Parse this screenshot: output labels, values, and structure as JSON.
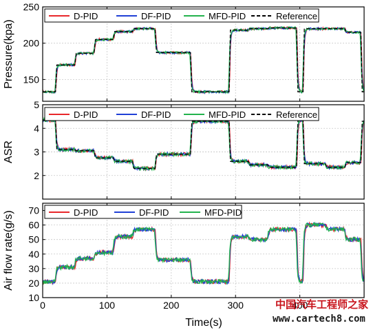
{
  "chart_data": [
    {
      "type": "line",
      "ylabel": "Pressure(kpa)",
      "ylim": [
        120,
        250
      ],
      "yticks": [
        150,
        200,
        250
      ],
      "xlim": [
        0,
        500
      ],
      "grid": true,
      "legend_placement": "top",
      "series": [
        {
          "name": "D-PID",
          "color": "#e8262a"
        },
        {
          "name": "DF-PID",
          "color": "#1f3fd6"
        },
        {
          "name": "MFD-PID",
          "color": "#22b24c"
        },
        {
          "name": "Reference",
          "color": "#000000",
          "dashed": true
        }
      ],
      "x": [
        0,
        3,
        20,
        22,
        50,
        52,
        80,
        82,
        110,
        112,
        140,
        142,
        175,
        177,
        230,
        232,
        290,
        292,
        320,
        322,
        350,
        352,
        395,
        397,
        405,
        407,
        440,
        442,
        470,
        472,
        495,
        497,
        550
      ],
      "reference": [
        133,
        133,
        133,
        170,
        170,
        186,
        186,
        205,
        205,
        216,
        216,
        220,
        220,
        187,
        187,
        133,
        133,
        218,
        218,
        220,
        220,
        221,
        221,
        133,
        133,
        220,
        220,
        220,
        220,
        215,
        215,
        133,
        133
      ]
    },
    {
      "type": "line",
      "ylabel": "ASR",
      "ylim": [
        1,
        5
      ],
      "yticks": [
        2,
        3,
        4,
        5
      ],
      "xlim": [
        0,
        500
      ],
      "grid": true,
      "legend_placement": "top",
      "series": [
        {
          "name": "D-PID",
          "color": "#e8262a"
        },
        {
          "name": "DF-PID",
          "color": "#1f3fd6"
        },
        {
          "name": "MFD-PID",
          "color": "#22b24c"
        },
        {
          "name": "Reference",
          "color": "#000000",
          "dashed": true
        }
      ],
      "x": [
        0,
        20,
        22,
        50,
        52,
        80,
        82,
        110,
        112,
        140,
        142,
        175,
        177,
        230,
        232,
        290,
        292,
        320,
        322,
        350,
        352,
        395,
        397,
        405,
        407,
        440,
        442,
        470,
        472,
        495,
        497,
        550
      ],
      "reference": [
        4.35,
        4.35,
        3.1,
        3.1,
        3.05,
        3.05,
        2.75,
        2.75,
        2.6,
        2.6,
        2.3,
        2.3,
        2.9,
        2.9,
        4.3,
        4.3,
        2.6,
        2.6,
        2.45,
        2.45,
        2.35,
        2.35,
        4.35,
        4.35,
        2.5,
        2.5,
        2.35,
        2.35,
        2.55,
        2.55,
        4.3,
        4.3
      ]
    },
    {
      "type": "line",
      "ylabel": "Air flow rate(g/s)",
      "xlabel": "Time(s)",
      "ylim": [
        10,
        75
      ],
      "yticks": [
        10,
        20,
        30,
        40,
        50,
        60,
        70
      ],
      "xlim": [
        0,
        500
      ],
      "xticks": [
        0,
        100,
        200,
        300,
        400
      ],
      "grid": true,
      "legend_placement": "top",
      "series": [
        {
          "name": "D-PID",
          "color": "#e8262a"
        },
        {
          "name": "DF-PID",
          "color": "#1f3fd6"
        },
        {
          "name": "MFD-PID",
          "color": "#22b24c"
        }
      ],
      "x": [
        0,
        20,
        22,
        50,
        52,
        80,
        82,
        110,
        112,
        140,
        142,
        175,
        177,
        230,
        232,
        290,
        292,
        320,
        322,
        350,
        352,
        395,
        397,
        405,
        407,
        440,
        442,
        470,
        472,
        495,
        497,
        550
      ],
      "reference": [
        21,
        21,
        31,
        31,
        37,
        37,
        41,
        41,
        52,
        52,
        57,
        57,
        36,
        36,
        21,
        21,
        52,
        52,
        50,
        50,
        57,
        57,
        21,
        21,
        60,
        60,
        57,
        57,
        50,
        50,
        21,
        21
      ]
    }
  ],
  "watermark": {
    "text_cn": "中国汽车工程师之家",
    "text_url": "www.cartech8.com"
  }
}
